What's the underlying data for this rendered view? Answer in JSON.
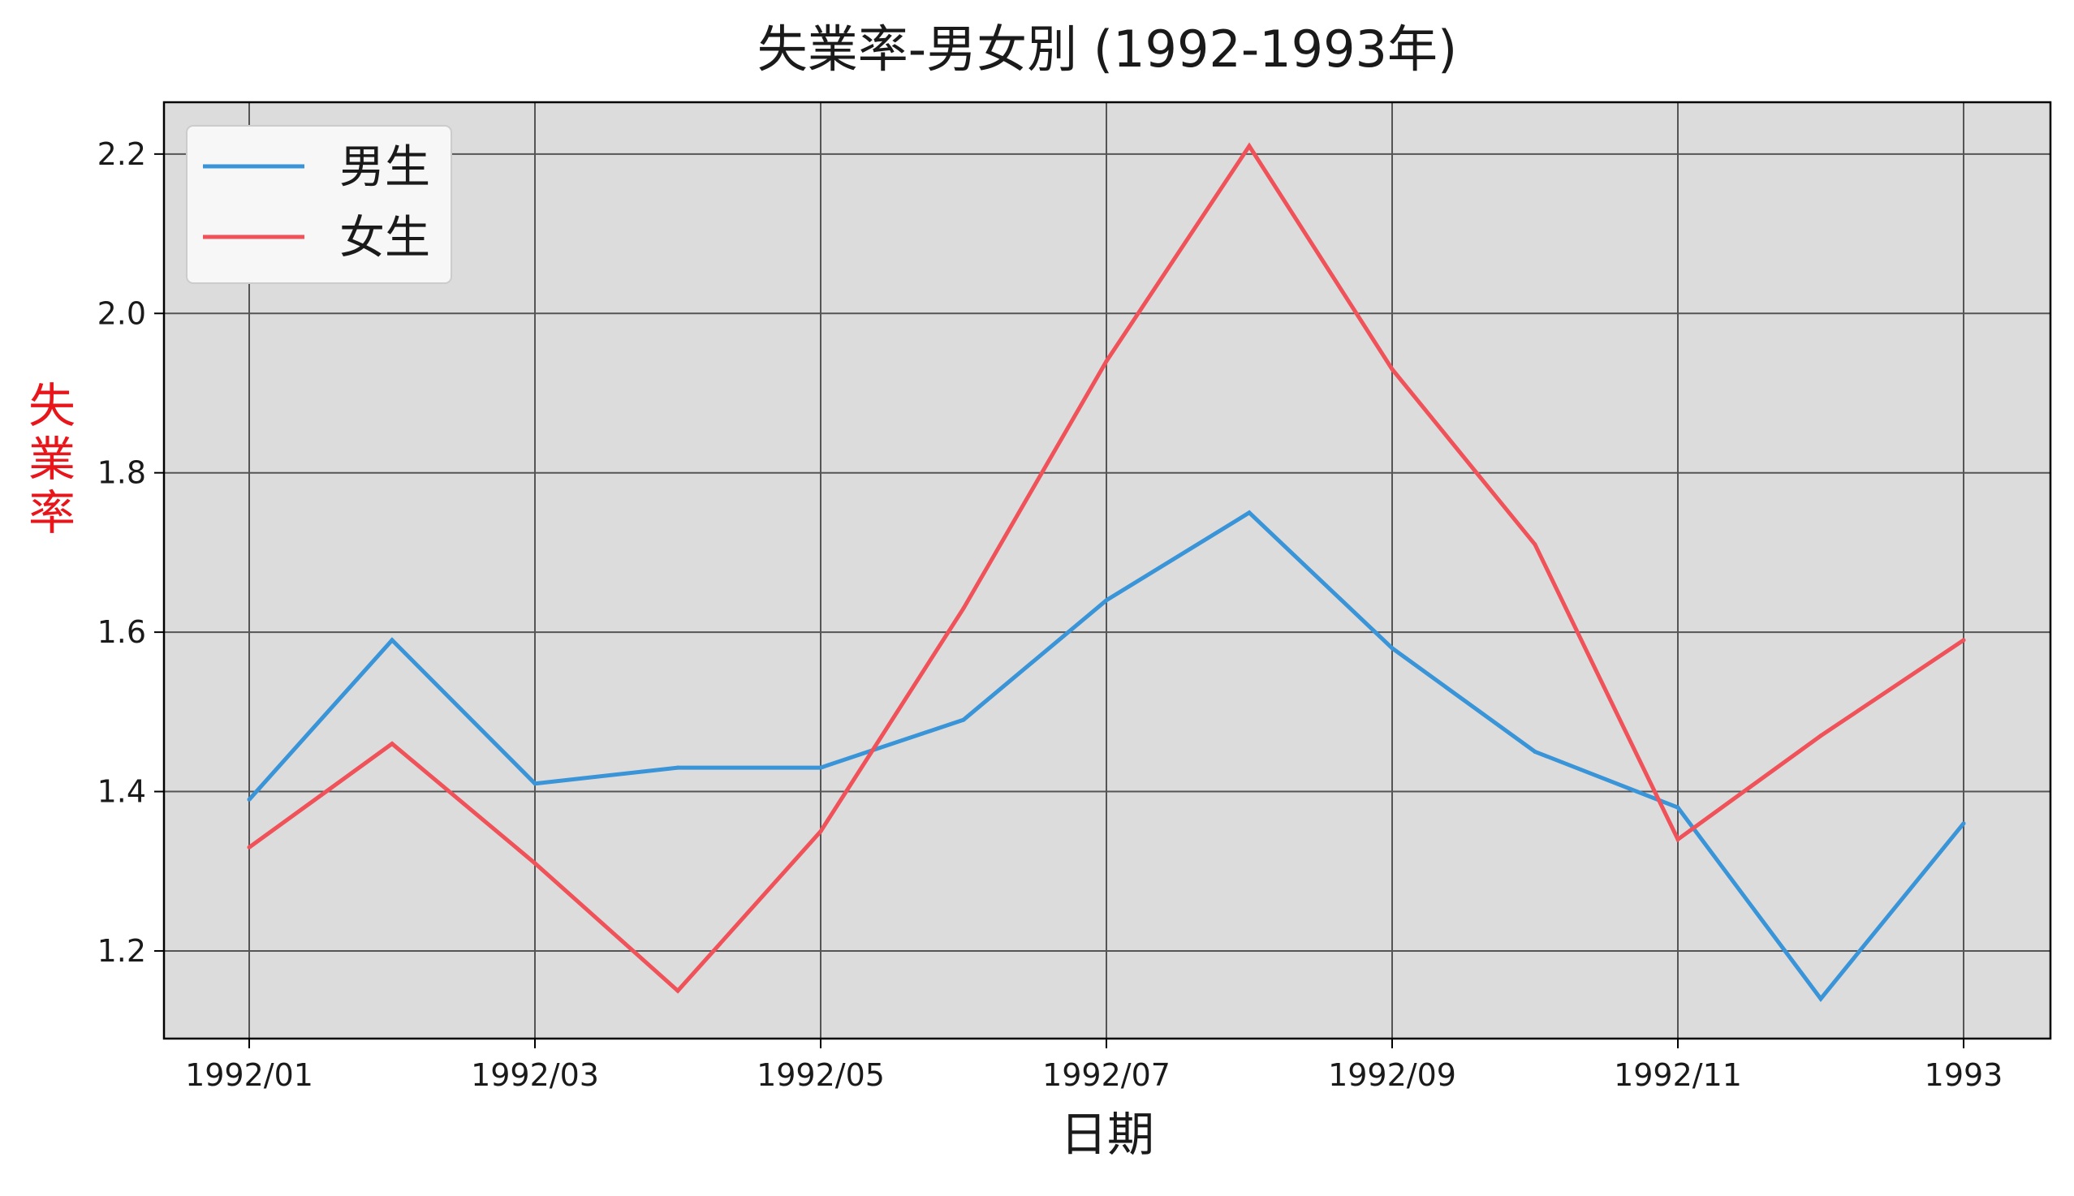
{
  "chart_data": {
    "type": "line",
    "title": "失業率-男女別 (1992-1993年)",
    "xlabel": "日期",
    "ylabel": "失業率",
    "x": [
      "1992/01",
      "1992/02",
      "1992/03",
      "1992/04",
      "1992/05",
      "1992/06",
      "1992/07",
      "1992/08",
      "1992/09",
      "1992/10",
      "1992/11",
      "1992/12",
      "1993/01"
    ],
    "x_ticks": [
      "1992/01",
      "1992/03",
      "1992/05",
      "1992/07",
      "1992/09",
      "1992/11",
      "1993"
    ],
    "y_ticks": [
      "1.2",
      "1.4",
      "1.6",
      "1.8",
      "2.0",
      "2.2"
    ],
    "ylim": [
      1.09,
      2.265
    ],
    "series": [
      {
        "name": "男生",
        "color": "#3a94d8",
        "values": [
          1.39,
          1.59,
          1.41,
          1.43,
          1.43,
          1.49,
          1.64,
          1.75,
          1.58,
          1.45,
          1.38,
          1.14,
          1.36
        ]
      },
      {
        "name": "女生",
        "color": "#f0525a",
        "values": [
          1.33,
          1.46,
          1.31,
          1.15,
          1.35,
          1.63,
          1.94,
          2.21,
          1.93,
          1.71,
          1.34,
          1.47,
          1.59
        ]
      }
    ],
    "grid": true,
    "legend_position": "top-left",
    "plot_background": "#dcdcdc",
    "ylabel_color": "#e8161b"
  }
}
